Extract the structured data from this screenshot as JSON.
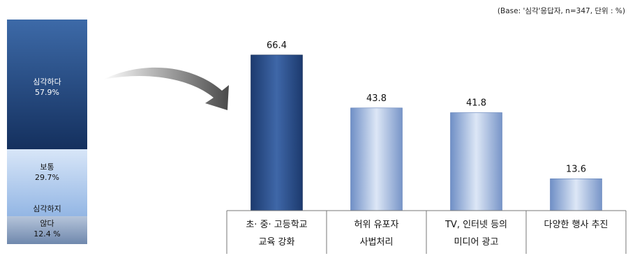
{
  "base_note": "(Base: '심각'응답자, n=347, 단위 : %)",
  "stacked_bar": {
    "segments": [
      {
        "label": "심각하다",
        "value_label": "57.9%",
        "value": 57.9,
        "color_top": "#3d6aa8",
        "color_bottom": "#14305e"
      },
      {
        "label": "보통",
        "value_label": "29.7%",
        "value": 29.7,
        "color_top": "#d8e6f8",
        "color_bottom": "#93b6e4"
      },
      {
        "label": "심각하지",
        "label2": "않다",
        "value_label": "12.4 %",
        "value": 12.4,
        "color_top": "#b5c4da",
        "color_bottom": "#6f88ad"
      }
    ]
  },
  "chart_data": {
    "type": "bar",
    "categories": [
      [
        "초· 중· 고등학교",
        "교육 강화"
      ],
      [
        "허위 유포자",
        "사법처리"
      ],
      [
        "TV, 인터넷 등의",
        "미디어 광고"
      ],
      [
        "다양한 행사 추진"
      ]
    ],
    "values": [
      66.4,
      43.8,
      41.8,
      13.6
    ],
    "value_labels": [
      "66.4",
      "43.8",
      "41.8",
      "13.6"
    ],
    "title": "",
    "xlabel": "",
    "ylabel": "",
    "ylim": [
      0,
      72
    ],
    "colors": {
      "first": "#2a4f8a",
      "rest": "#9db4dc"
    }
  }
}
